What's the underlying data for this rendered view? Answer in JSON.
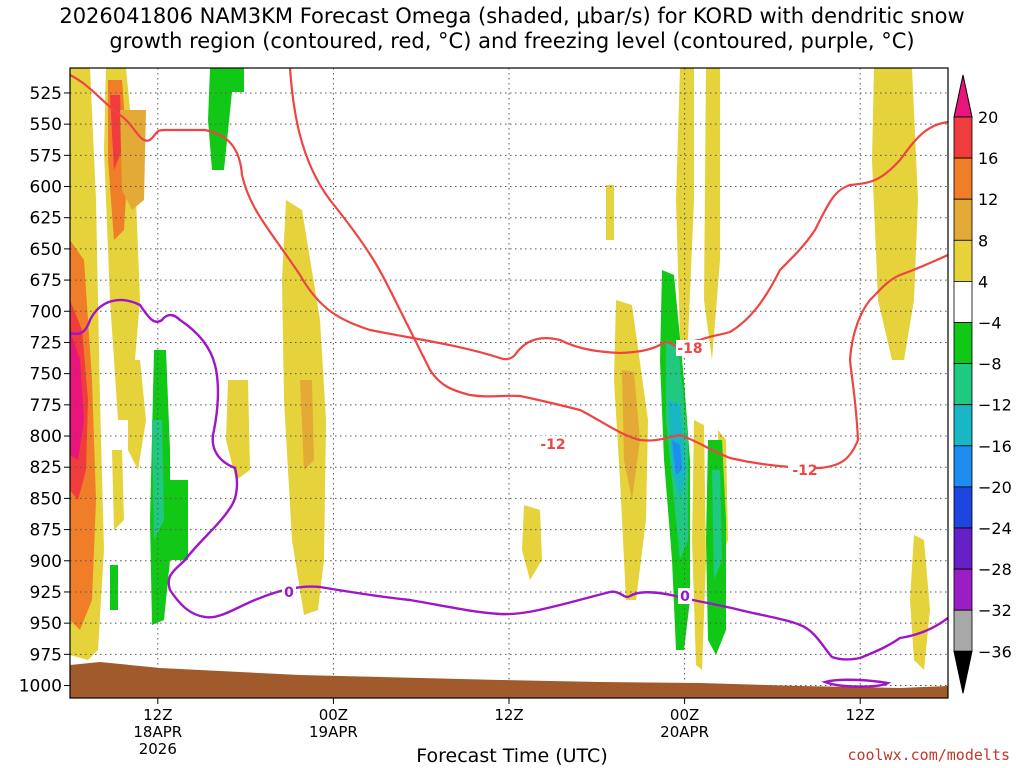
{
  "header": {
    "title_line1": "2026041806 NAM3KM Forecast Omega (shaded, μbar/s) for KORD with dendritic snow",
    "title_line2": "growth region (contoured, red, °C) and freezing level (contoured, purple, °C)"
  },
  "footer": {
    "xlabel": "Forecast Time (UTC)",
    "credit": "coolwx.com/modelts"
  },
  "chart_data": {
    "type": "heatmap",
    "y_axis": {
      "label": "",
      "ticks": [
        525,
        550,
        575,
        600,
        625,
        650,
        675,
        700,
        725,
        750,
        775,
        800,
        825,
        850,
        875,
        900,
        925,
        950,
        975,
        1000
      ],
      "range": [
        505,
        1010
      ],
      "inverted": true
    },
    "x_axis": {
      "range_hours": [
        0,
        60
      ],
      "ticks": [
        {
          "hour": 6,
          "labels": [
            "12Z",
            "18APR",
            "2026"
          ]
        },
        {
          "hour": 18,
          "labels": [
            "00Z",
            "19APR"
          ]
        },
        {
          "hour": 30,
          "labels": [
            "12Z"
          ]
        },
        {
          "hour": 42,
          "labels": [
            "00Z",
            "20APR"
          ]
        },
        {
          "hour": 54,
          "labels": [
            "12Z"
          ]
        }
      ]
    },
    "grid": "dotted",
    "colorbar": {
      "levels": [
        20,
        16,
        12,
        8,
        4,
        -4,
        -8,
        -12,
        -16,
        -20,
        -24,
        -28,
        -32,
        -36
      ],
      "colors": {
        "gt20": "#e8157a",
        "16_20": "#f03c3c",
        "12_16": "#f07d28",
        "8_12": "#e3ab35",
        "4_8": "#e6d23a",
        "m4_4": "#ffffff",
        "m8_m4": "#12c817",
        "m12_m8": "#1fc97f",
        "m16_m12": "#19b7c5",
        "m20_m16": "#1e8cf0",
        "m24_m20": "#1f45e0",
        "m28_m24": "#6620c8",
        "m32_m28": "#9a1ec4",
        "m36_m32": "#a8a8a8",
        "lt_m36": "#000000"
      }
    },
    "contour_labels": {
      "red_upper": "-18",
      "red_lower1": "-12",
      "red_lower2": "-12",
      "purple1": "0",
      "purple2": "0"
    },
    "line_colors": {
      "red": "#ee4444",
      "purple": "#9e16c8",
      "terrain": "#a05a2c"
    }
  }
}
